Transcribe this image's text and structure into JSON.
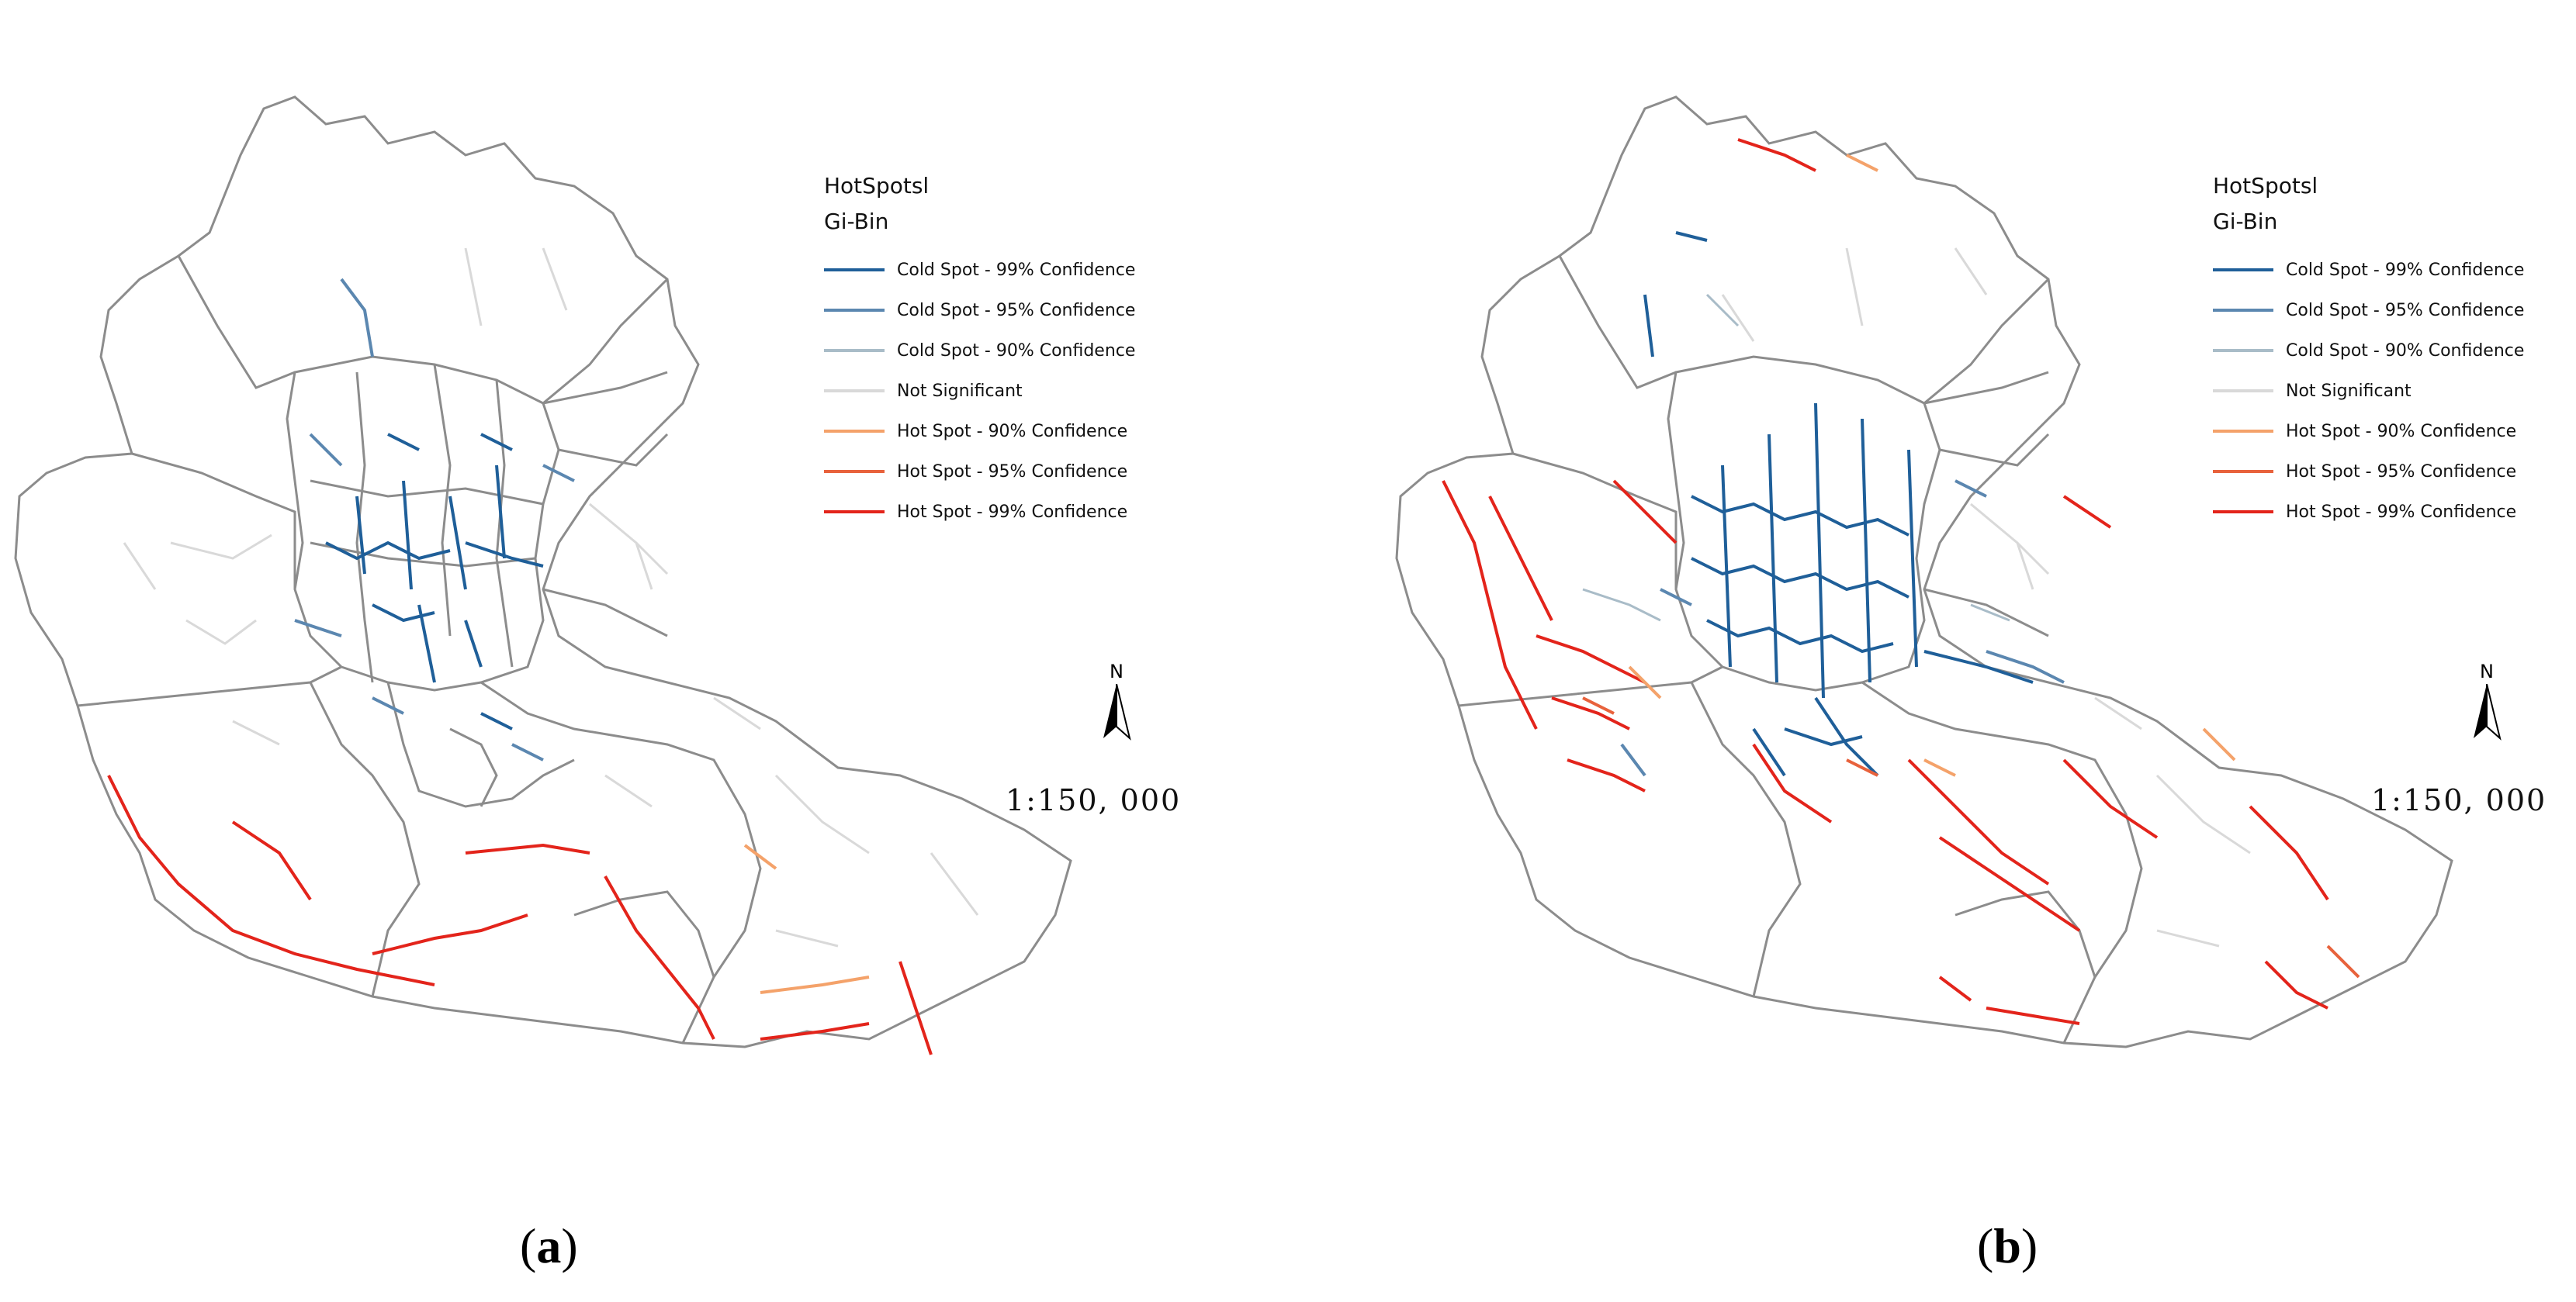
{
  "panels": [
    {
      "id": "a",
      "caption_open": "(",
      "caption_letter": "a",
      "caption_close": ")",
      "legend_title": "HotSpotsl",
      "legend_subtitle": "Gi-Bin",
      "scale_text": "1:150, 000",
      "north_label": "N"
    },
    {
      "id": "b",
      "caption_open": "(",
      "caption_letter": "b",
      "caption_close": ")",
      "legend_title": "HotSpotsl",
      "legend_subtitle": "Gi-Bin",
      "scale_text": "1:150, 000",
      "north_label": "N"
    }
  ],
  "legend_items": [
    {
      "label": "Cold Spot - 99%  Confidence",
      "color": "#1f5f99"
    },
    {
      "label": "Cold Spot - 95%  Confidence",
      "color": "#5b87b0"
    },
    {
      "label": "Cold Spot - 90%  Confidence",
      "color": "#a9bcc8"
    },
    {
      "label": "Not Significant",
      "color": "#d9d9d9"
    },
    {
      "label": "Hot Spot - 90%  Confidence",
      "color": "#f4a26a"
    },
    {
      "label": "Hot Spot - 95%  Confidence",
      "color": "#e8623c"
    },
    {
      "label": "Hot Spot - 99%  Confidence",
      "color": "#e3241b"
    }
  ],
  "colors": {
    "boundary": "#8c8c8c",
    "district": "#808080"
  }
}
